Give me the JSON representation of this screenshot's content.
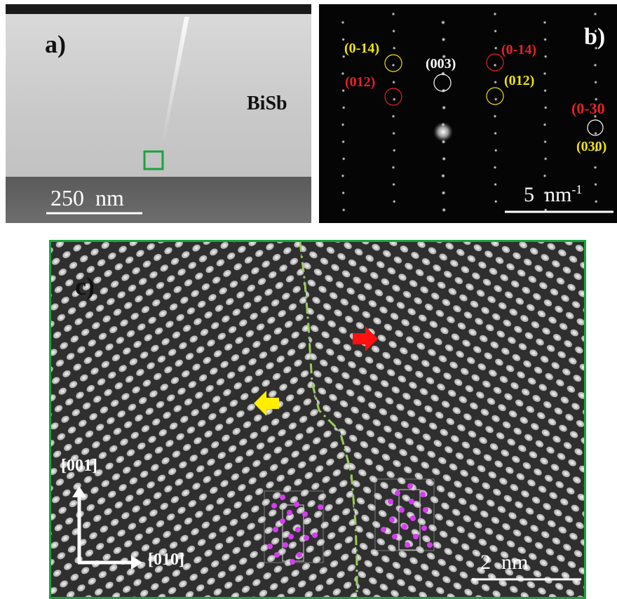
{
  "figure": {
    "panel_a": {
      "label": "a)",
      "material_label": "BiSb",
      "scale_bar_label": "250  nm",
      "colors": {
        "roi_box": "#19a33d"
      }
    },
    "panel_b": {
      "label": "b)",
      "scale_bar_label": "5  nm",
      "scale_bar_superscript": "-1",
      "spot_labels": [
        {
          "text": "(0-14)",
          "color": "#f2e600"
        },
        {
          "text": "(012)",
          "color": "#e8202a"
        },
        {
          "text": "(003)",
          "color": "#ffffff"
        },
        {
          "text": "(0-14)",
          "color": "#e8202a"
        },
        {
          "text": "(012)",
          "color": "#f2e600"
        },
        {
          "text": "(0-30",
          "color": "#e8202a"
        },
        {
          "text": "(030)",
          "color": "#f2e600"
        }
      ]
    },
    "panel_c": {
      "label": "c)",
      "axis_vertical_label": "[001]",
      "axis_horizontal_label": "[010]",
      "scale_bar_label": "2  nm",
      "colors": {
        "frame": "#19a33d",
        "grain_boundary": "#9ccc5a",
        "arrow_right": "#ff1010",
        "arrow_left": "#ffee00",
        "atoms": "#d63cf0"
      }
    }
  }
}
